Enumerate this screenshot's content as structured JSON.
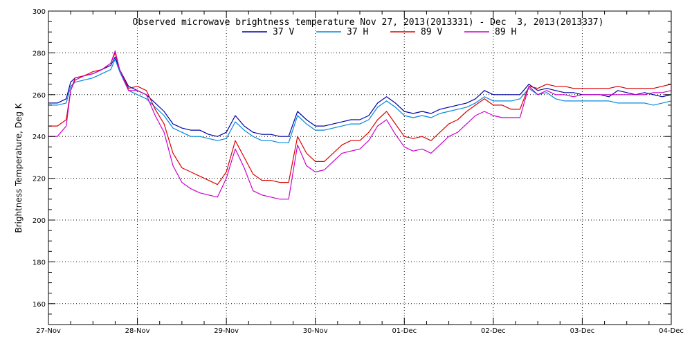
{
  "chart_data": {
    "type": "line",
    "title": "Observed microwave brightness temperature Nov 27, 2013(2013331) - Dec  3, 2013(2013337)",
    "xlabel": "",
    "ylabel": "Brightness Temperature, Deg K",
    "xlim": [
      0,
      7
    ],
    "ylim": [
      150,
      300
    ],
    "x_tick_labels": [
      "27-Nov",
      "28-Nov",
      "29-Nov",
      "30-Nov",
      "01-Dec",
      "02-Dec",
      "03-Dec",
      "04-Dec"
    ],
    "y_ticks": [
      160,
      180,
      200,
      220,
      240,
      260,
      280,
      300
    ],
    "grid": true,
    "legend_position": "top-center",
    "x": [
      0.0,
      0.1,
      0.2,
      0.25,
      0.3,
      0.4,
      0.5,
      0.6,
      0.7,
      0.75,
      0.8,
      0.9,
      1.0,
      1.1,
      1.2,
      1.3,
      1.4,
      1.5,
      1.6,
      1.7,
      1.8,
      1.9,
      2.0,
      2.1,
      2.2,
      2.3,
      2.4,
      2.5,
      2.6,
      2.7,
      2.8,
      2.9,
      3.0,
      3.1,
      3.2,
      3.3,
      3.4,
      3.5,
      3.6,
      3.7,
      3.8,
      3.9,
      4.0,
      4.1,
      4.2,
      4.3,
      4.4,
      4.5,
      4.6,
      4.7,
      4.8,
      4.9,
      5.0,
      5.1,
      5.2,
      5.3,
      5.4,
      5.5,
      5.6,
      5.7,
      5.8,
      5.9,
      6.0,
      6.05,
      6.1,
      6.2,
      6.3,
      6.4,
      6.5,
      6.6,
      6.7,
      6.8,
      6.9,
      7.0
    ],
    "series": [
      {
        "name": "37 V",
        "color": "#0000a8",
        "values": [
          256,
          256,
          258,
          266,
          268,
          269,
          270,
          272,
          274,
          278,
          272,
          264,
          262,
          260,
          256,
          252,
          246,
          244,
          243,
          243,
          241,
          240,
          242,
          250,
          245,
          242,
          241,
          241,
          240,
          240,
          252,
          248,
          245,
          245,
          246,
          247,
          248,
          248,
          250,
          256,
          259,
          256,
          252,
          251,
          252,
          251,
          253,
          254,
          255,
          256,
          258,
          262,
          260,
          260,
          260,
          260,
          265,
          262,
          263,
          262,
          261,
          261,
          260,
          260,
          260,
          260,
          259,
          262,
          261,
          260,
          261,
          260,
          259,
          260
        ]
      },
      {
        "name": "37 H",
        "color": "#0088dd",
        "values": [
          255,
          255,
          256,
          264,
          266,
          267,
          268,
          270,
          272,
          277,
          271,
          262,
          260,
          258,
          254,
          250,
          244,
          242,
          240,
          240,
          239,
          238,
          239,
          247,
          243,
          240,
          238,
          238,
          237,
          237,
          250,
          246,
          243,
          243,
          244,
          245,
          246,
          246,
          248,
          254,
          257,
          254,
          250,
          249,
          250,
          249,
          251,
          252,
          253,
          254,
          256,
          259,
          257,
          257,
          257,
          258,
          263,
          260,
          261,
          258,
          257,
          257,
          257,
          257,
          257,
          257,
          257,
          256,
          256,
          256,
          256,
          255,
          256,
          257
        ]
      },
      {
        "name": "89 V",
        "color": "#dd0000",
        "values": [
          245,
          245,
          248,
          262,
          268,
          269,
          271,
          272,
          275,
          280,
          272,
          263,
          264,
          262,
          253,
          246,
          232,
          225,
          223,
          221,
          219,
          217,
          223,
          238,
          230,
          222,
          219,
          219,
          218,
          218,
          240,
          232,
          228,
          228,
          232,
          236,
          238,
          238,
          242,
          248,
          252,
          246,
          240,
          239,
          240,
          238,
          242,
          246,
          248,
          252,
          255,
          258,
          255,
          255,
          253,
          253,
          264,
          263,
          265,
          264,
          264,
          263,
          263,
          263,
          263,
          263,
          263,
          264,
          263,
          263,
          263,
          263,
          264,
          265
        ]
      },
      {
        "name": "89 H",
        "color": "#cc00cc",
        "values": [
          240,
          240,
          245,
          262,
          267,
          269,
          270,
          272,
          275,
          281,
          272,
          262,
          262,
          260,
          250,
          242,
          226,
          218,
          215,
          213,
          212,
          211,
          220,
          234,
          225,
          214,
          212,
          211,
          210,
          210,
          236,
          226,
          223,
          224,
          228,
          232,
          233,
          234,
          238,
          245,
          248,
          241,
          235,
          233,
          234,
          232,
          236,
          240,
          242,
          246,
          250,
          252,
          250,
          249,
          249,
          249,
          264,
          260,
          262,
          260,
          260,
          259,
          260,
          260,
          260,
          260,
          260,
          260,
          260,
          260,
          260,
          261,
          261,
          262
        ]
      }
    ]
  }
}
